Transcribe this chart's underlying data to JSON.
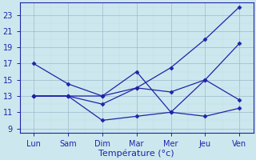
{
  "x_labels": [
    "Lun",
    "Sam",
    "Dim",
    "Mar",
    "Mer",
    "Jeu",
    "Ven"
  ],
  "x_positions": [
    0,
    1,
    2,
    3,
    4,
    5,
    6
  ],
  "series": [
    [
      13,
      13,
      13,
      14,
      16.5,
      20,
      24
    ],
    [
      17,
      14.5,
      13,
      16,
      11,
      15,
      12.5
    ],
    [
      13,
      13,
      12,
      14,
      13.5,
      15,
      19.5
    ],
    [
      13,
      13,
      10,
      10.5,
      11,
      10.5,
      11.5
    ]
  ],
  "line_color": "#2222aa",
  "marker": "D",
  "marker_size": 2.5,
  "linewidth": 0.9,
  "background_color": "#cce8ee",
  "grid_color_major": "#99bbcc",
  "grid_color_minor": "#bbdddd",
  "axis_color": "#2222aa",
  "xlabel": "Température (°c)",
  "ylim": [
    8.5,
    24.5
  ],
  "yticks": [
    9,
    11,
    13,
    15,
    17,
    19,
    21,
    23
  ],
  "tick_fontsize": 7,
  "label_fontsize": 8,
  "xlim": [
    -0.4,
    6.4
  ]
}
